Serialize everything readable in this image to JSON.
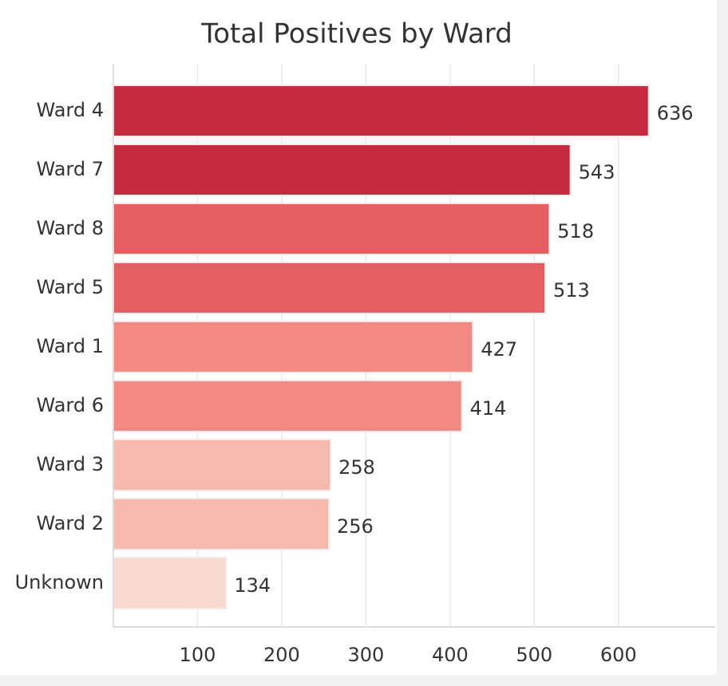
{
  "chart_data": {
    "type": "hbar",
    "title": "Total Positives by Ward",
    "categories": [
      "Ward 4",
      "Ward 7",
      "Ward 8",
      "Ward 5",
      "Ward 1",
      "Ward 6",
      "Ward 3",
      "Ward 2",
      "Unknown"
    ],
    "values": [
      636,
      543,
      518,
      513,
      427,
      414,
      258,
      256,
      134
    ],
    "colors": [
      "#c52b40",
      "#c52b40",
      "#e45d61",
      "#e45d61",
      "#f08a83",
      "#f08a83",
      "#f6b9ae",
      "#f6b9ae",
      "#f7dbd2"
    ],
    "xlim": [
      0,
      714
    ],
    "xticks": [
      100,
      200,
      300,
      400,
      500,
      600
    ],
    "grid": true
  }
}
